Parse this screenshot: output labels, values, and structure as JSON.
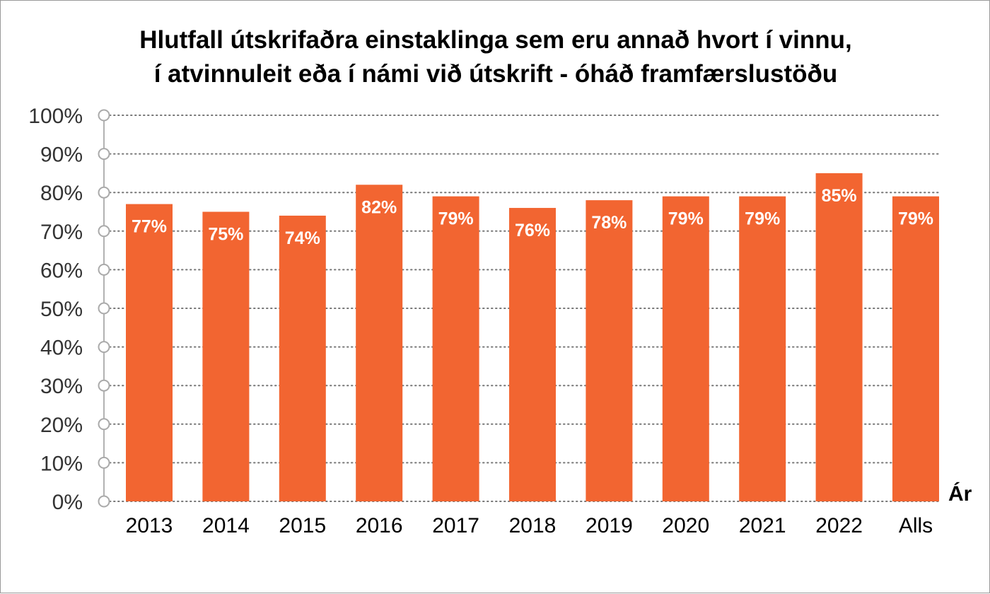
{
  "chart_data": {
    "type": "bar",
    "title_lines": [
      "Hlutfall útskrifaðra einstaklinga sem eru annað hvort í vinnu,",
      "í atvinnuleit eða í námi við útskrift - óháð framfærslustöðu"
    ],
    "xlabel": "Ár",
    "ylabel": "",
    "categories": [
      "2013",
      "2014",
      "2015",
      "2016",
      "2017",
      "2018",
      "2019",
      "2020",
      "2021",
      "2022",
      "Alls"
    ],
    "values": [
      77,
      75,
      74,
      82,
      79,
      76,
      78,
      79,
      79,
      85,
      79
    ],
    "value_labels": [
      "77%",
      "75%",
      "74%",
      "82%",
      "79%",
      "76%",
      "78%",
      "79%",
      "79%",
      "85%",
      "79%"
    ],
    "y_ticks": [
      "0%",
      "10%",
      "20%",
      "30%",
      "40%",
      "50%",
      "60%",
      "70%",
      "80%",
      "90%",
      "100%"
    ],
    "ylim": [
      0,
      100
    ],
    "grid": true,
    "legend": "none",
    "colors": {
      "bar": "#f26531",
      "grid": "#777777",
      "label": "#ffffff"
    }
  }
}
